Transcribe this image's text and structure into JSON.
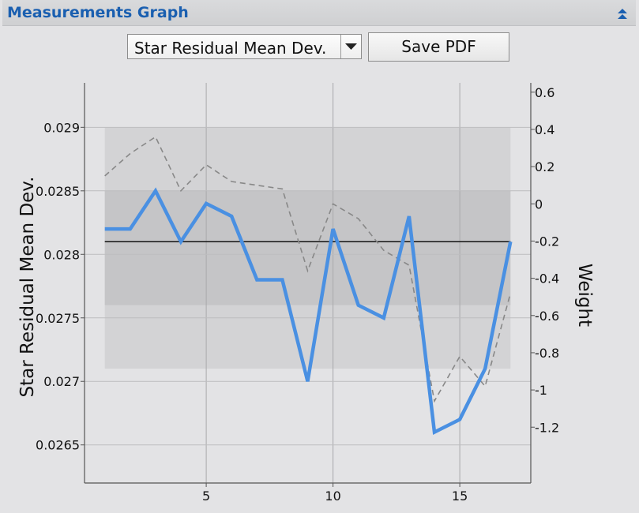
{
  "header": {
    "title": "Measurements Graph",
    "collapse_icon": "collapse-up-icon"
  },
  "controls": {
    "metric_select": "Star Residual Mean Dev.",
    "save_label": "Save PDF"
  },
  "chart_data": {
    "type": "line",
    "title": "",
    "xlabel": "",
    "ylabel": "Star Residual Mean Dev.",
    "y2label": "Weight",
    "xlim": [
      0.2,
      17.8
    ],
    "ylim": [
      0.0262,
      0.02935
    ],
    "y2lim": [
      -1.5,
      0.65
    ],
    "x_ticks": [
      5,
      10,
      15
    ],
    "y_ticks": [
      0.0265,
      0.027,
      0.0275,
      0.028,
      0.0285,
      0.029
    ],
    "y_tick_labels": [
      "0.0265",
      "0.027",
      "0.0275",
      "0.028",
      "0.0285",
      "0.029"
    ],
    "y2_ticks": [
      0.6,
      0.4,
      0.2,
      0,
      -0.2,
      -0.4,
      -0.6,
      -0.8,
      -1,
      -1.2
    ],
    "y2_tick_labels": [
      "0.6",
      "0.4",
      "0.2",
      "0",
      "-0.2",
      "-0.4",
      "-0.6",
      "-0.8",
      "-1",
      "-1.2"
    ],
    "bands": [
      {
        "name": "outer-band",
        "x": [
          1,
          17
        ],
        "y": [
          0.0271,
          0.029
        ],
        "color": "#d3d3d5"
      },
      {
        "name": "inner-band",
        "x": [
          1,
          17
        ],
        "y": [
          0.0276,
          0.0285
        ],
        "color": "#c5c5c7"
      }
    ],
    "mean_line": {
      "y": 0.0281,
      "color": "#111111"
    },
    "series": [
      {
        "name": "Star Residual Mean Dev.",
        "axis": "left",
        "color": "#4a90e2",
        "x": [
          1,
          2,
          3,
          4,
          5,
          6,
          7,
          8,
          9,
          10,
          11,
          12,
          13,
          14,
          15,
          16,
          17
        ],
        "values": [
          0.0282,
          0.0282,
          0.0285,
          0.0281,
          0.0284,
          0.0283,
          0.0278,
          0.0278,
          0.027,
          0.0282,
          0.0276,
          0.0275,
          0.0283,
          0.0266,
          0.0267,
          0.0271,
          0.0281
        ]
      },
      {
        "name": "Weight",
        "axis": "right",
        "color": "#888888",
        "dashed": true,
        "x": [
          1,
          2,
          3,
          4,
          5,
          6,
          7,
          8,
          9,
          10,
          11,
          12,
          13,
          14,
          15,
          16,
          17
        ],
        "values": [
          0.15,
          0.27,
          0.36,
          0.07,
          0.21,
          0.12,
          0.1,
          0.08,
          -0.36,
          0.0,
          -0.08,
          -0.25,
          -0.33,
          -1.06,
          -0.82,
          -0.98,
          -0.48
        ]
      }
    ]
  }
}
